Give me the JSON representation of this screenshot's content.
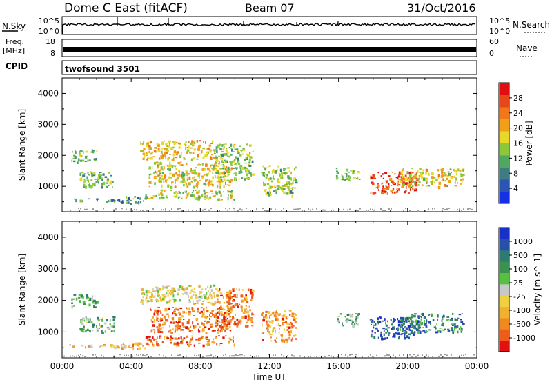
{
  "header": {
    "title": "Dome C East (fitACF)",
    "beam": "Beam 07",
    "date": "31/Oct/2016"
  },
  "top_strips": {
    "nsky_label": "N.Sky",
    "nsky_top_tick": "10^5",
    "nsky_bottom_tick": "10^0",
    "nsearch_label": "N.Search",
    "nsearch_top_tick": "10^5",
    "nsearch_bottom_tick": "10^0",
    "freq_label": "Freq.",
    "freq_unit": "[MHz]",
    "freq_top_tick": "18",
    "freq_bottom_tick": "8",
    "nave_label": "Nave",
    "nave_top_tick": "60",
    "nave_bottom_tick": "0",
    "cpid_label": "CPID",
    "cpid_value": "twofsound 3501"
  },
  "colors": {
    "power_scale": [
      "#1630e6",
      "#2a55b0",
      "#3d7d82",
      "#4ea860",
      "#8cc83a",
      "#e8d82a",
      "#f0a018",
      "#f07818",
      "#e84818",
      "#e01010"
    ],
    "velocity_scale": [
      "#e21010",
      "#f05a1a",
      "#f08a20",
      "#f0b030",
      "#f0d040",
      "#c8c8c8",
      "#58c040",
      "#3c9050",
      "#2c7a70",
      "#2850a8",
      "#1830c8"
    ],
    "ground_scatter": "#9a9a9a"
  },
  "chart_data": [
    {
      "type": "heatmap",
      "name": "power",
      "xlabel": "",
      "ylabel": "Slant Range [km]",
      "x_ticks": [
        "00:00",
        "04:00",
        "08:00",
        "12:00",
        "16:00",
        "20:00",
        "00:00"
      ],
      "xlim_hours": [
        0,
        24
      ],
      "ylim_km": [
        180,
        4500
      ],
      "y_ticks": [
        1000,
        2000,
        3000,
        4000
      ],
      "colorbar": {
        "label": "Power [dB]",
        "range": [
          0,
          30
        ],
        "ticks": [
          "4",
          "8",
          "12",
          "16",
          "20",
          "24",
          "28"
        ]
      },
      "regions": [
        {
          "t0": 0.2,
          "t1": 3.8,
          "r0": 520,
          "r1": 620,
          "level": 0.3
        },
        {
          "t0": 3.5,
          "t1": 4.8,
          "r0": 450,
          "r1": 700,
          "level": 0.35
        },
        {
          "t0": 4.8,
          "t1": 10.0,
          "r0": 600,
          "r1": 900,
          "level": 0.5
        },
        {
          "t0": 5.0,
          "t1": 9.8,
          "r0": 1000,
          "r1": 1800,
          "level": 0.55
        },
        {
          "t0": 4.5,
          "t1": 8.8,
          "r0": 1900,
          "r1": 2500,
          "level": 0.6
        },
        {
          "t0": 8.8,
          "t1": 11.0,
          "r0": 1200,
          "r1": 2400,
          "level": 0.45
        },
        {
          "t0": 11.5,
          "t1": 13.5,
          "r0": 700,
          "r1": 1700,
          "level": 0.45
        },
        {
          "t0": 1.0,
          "t1": 3.0,
          "r0": 1000,
          "r1": 1500,
          "level": 0.4
        },
        {
          "t0": 0.5,
          "t1": 2.0,
          "r0": 1800,
          "r1": 2200,
          "level": 0.4
        },
        {
          "t0": 17.8,
          "t1": 20.5,
          "r0": 800,
          "r1": 1500,
          "level": 0.85
        },
        {
          "t0": 19.5,
          "t1": 23.2,
          "r0": 1000,
          "r1": 1600,
          "level": 0.55
        },
        {
          "t0": 15.8,
          "t1": 17.2,
          "r0": 1200,
          "r1": 1600,
          "level": 0.4
        }
      ]
    },
    {
      "type": "heatmap",
      "name": "velocity",
      "xlabel": "Time UT",
      "ylabel": "Slant Range [km]",
      "x_ticks": [
        "00:00",
        "04:00",
        "08:00",
        "12:00",
        "16:00",
        "20:00",
        "00:00"
      ],
      "xlim_hours": [
        0,
        24
      ],
      "ylim_km": [
        180,
        4500
      ],
      "y_ticks": [
        1000,
        2000,
        3000,
        4000
      ],
      "colorbar": {
        "label": "Velocity [m s^-1]",
        "range": [
          -1000,
          1000
        ],
        "ticks": [
          "1000",
          "500",
          "100",
          "25",
          "-25",
          "-100",
          "-500",
          "-1000"
        ]
      },
      "regions": [
        {
          "t0": 0.2,
          "t1": 3.8,
          "r0": 520,
          "r1": 620,
          "level": 0.35
        },
        {
          "t0": 3.5,
          "t1": 4.8,
          "r0": 450,
          "r1": 700,
          "level": 0.3
        },
        {
          "t0": 4.8,
          "t1": 10.0,
          "r0": 600,
          "r1": 900,
          "level": 0.2
        },
        {
          "t0": 5.0,
          "t1": 9.8,
          "r0": 1000,
          "r1": 1800,
          "level": 0.2
        },
        {
          "t0": 4.5,
          "t1": 8.8,
          "r0": 1900,
          "r1": 2500,
          "level": 0.45
        },
        {
          "t0": 8.8,
          "t1": 11.0,
          "r0": 1200,
          "r1": 2400,
          "level": 0.22
        },
        {
          "t0": 11.5,
          "t1": 13.5,
          "r0": 700,
          "r1": 1700,
          "level": 0.25
        },
        {
          "t0": 1.0,
          "t1": 3.0,
          "r0": 1000,
          "r1": 1500,
          "level": 0.6
        },
        {
          "t0": 0.5,
          "t1": 2.0,
          "r0": 1800,
          "r1": 2200,
          "level": 0.65
        },
        {
          "t0": 17.8,
          "t1": 20.5,
          "r0": 800,
          "r1": 1500,
          "level": 0.88
        },
        {
          "t0": 19.5,
          "t1": 23.2,
          "r0": 1000,
          "r1": 1600,
          "level": 0.75
        },
        {
          "t0": 15.8,
          "t1": 17.2,
          "r0": 1200,
          "r1": 1600,
          "level": 0.62
        }
      ]
    }
  ]
}
